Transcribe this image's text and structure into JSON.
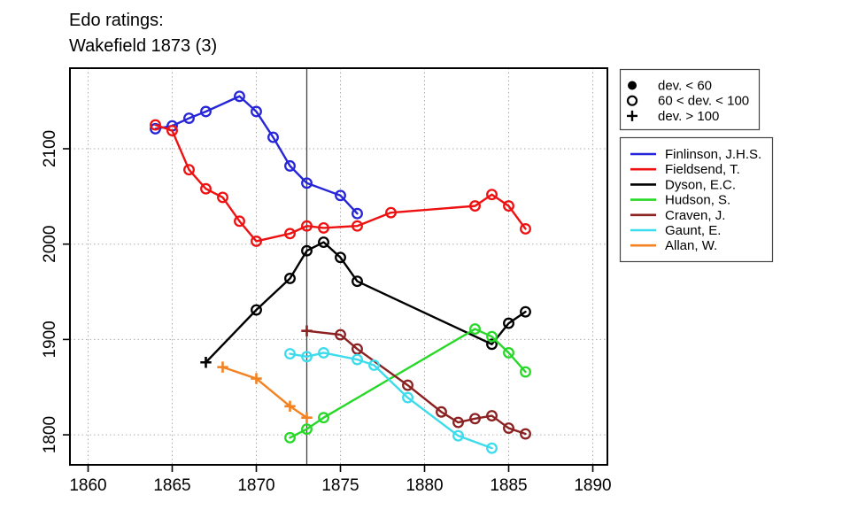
{
  "title": {
    "line1": "Edo ratings:",
    "line2": "Wakefield 1873 (3)"
  },
  "chart_data": {
    "type": "line",
    "title": "Edo ratings: Wakefield 1873 (3)",
    "xlabel": "",
    "ylabel": "",
    "x_ticks": [
      "1860",
      "1865",
      "1870",
      "1875",
      "1880",
      "1885",
      "1890"
    ],
    "y_ticks": [
      "1800",
      "1900",
      "2000",
      "2100"
    ],
    "xlim": [
      1859,
      1891
    ],
    "ylim": [
      1770,
      2185
    ],
    "grid": "dotted",
    "legend_position": "right-outside",
    "reference_line_year": 1873,
    "marker_legend": [
      {
        "symbol": "filled-circle",
        "label": "dev. < 60"
      },
      {
        "symbol": "open-circle",
        "label": "60 < dev. < 100"
      },
      {
        "symbol": "plus",
        "label": "dev. > 100"
      }
    ],
    "marker_meaning": {
      "o": "60 < dev. < 100",
      "+": "dev. > 100",
      "f": "dev. < 60"
    },
    "series": [
      {
        "name": "Finlinson, J.H.S.",
        "color": "#2626d8",
        "points": [
          [
            1864,
            2121,
            "o"
          ],
          [
            1865,
            2124,
            "o"
          ],
          [
            1866,
            2132,
            "o"
          ],
          [
            1867,
            2139,
            "o"
          ],
          [
            1869,
            2155,
            "o"
          ],
          [
            1870,
            2139,
            "o"
          ],
          [
            1871,
            2112,
            "o"
          ],
          [
            1872,
            2082,
            "o"
          ],
          [
            1873,
            2064,
            "o"
          ],
          [
            1875,
            2051,
            "o"
          ],
          [
            1876,
            2032,
            "o"
          ]
        ]
      },
      {
        "name": "Fieldsend, T.",
        "color": "#ee1111",
        "points": [
          [
            1864,
            2125,
            "o"
          ],
          [
            1865,
            2119,
            "o"
          ],
          [
            1866,
            2078,
            "o"
          ],
          [
            1867,
            2058,
            "o"
          ],
          [
            1868,
            2049,
            "o"
          ],
          [
            1869,
            2024,
            "o"
          ],
          [
            1870,
            2003,
            "o"
          ],
          [
            1872,
            2011,
            "o"
          ],
          [
            1873,
            2019,
            "o"
          ],
          [
            1874,
            2017,
            "o"
          ],
          [
            1876,
            2019,
            "o"
          ],
          [
            1878,
            2033,
            "o"
          ],
          [
            1883,
            2040,
            "o"
          ],
          [
            1884,
            2052,
            "o"
          ],
          [
            1885,
            2040,
            "o"
          ],
          [
            1886,
            2016,
            "o"
          ]
        ]
      },
      {
        "name": "Dyson, E.C.",
        "color": "#000000",
        "points": [
          [
            1867,
            1876,
            "+"
          ],
          [
            1870,
            1931,
            "o"
          ],
          [
            1872,
            1964,
            "o"
          ],
          [
            1873,
            1993,
            "o"
          ],
          [
            1874,
            2002,
            "o"
          ],
          [
            1875,
            1986,
            "o"
          ],
          [
            1876,
            1961,
            "o"
          ],
          [
            1884,
            1895,
            "o"
          ],
          [
            1885,
            1917,
            "o"
          ],
          [
            1886,
            1929,
            "o"
          ]
        ]
      },
      {
        "name": "Hudson, S.",
        "color": "#28d828",
        "points": [
          [
            1872,
            1797,
            "o"
          ],
          [
            1873,
            1806,
            "o"
          ],
          [
            1874,
            1818,
            "o"
          ],
          [
            1883,
            1911,
            "o"
          ],
          [
            1884,
            1903,
            "o"
          ],
          [
            1885,
            1886,
            "o"
          ],
          [
            1886,
            1866,
            "o"
          ]
        ]
      },
      {
        "name": "Craven, J.",
        "color": "#8b2121",
        "points": [
          [
            1873,
            1909,
            "+"
          ],
          [
            1875,
            1905,
            "o"
          ],
          [
            1876,
            1890,
            "o"
          ],
          [
            1879,
            1852,
            "o"
          ],
          [
            1881,
            1824,
            "o"
          ],
          [
            1882,
            1813,
            "o"
          ],
          [
            1883,
            1817,
            "o"
          ],
          [
            1884,
            1820,
            "o"
          ],
          [
            1885,
            1807,
            "o"
          ],
          [
            1886,
            1801,
            "o"
          ]
        ]
      },
      {
        "name": "Gaunt, E.",
        "color": "#3cdcec",
        "points": [
          [
            1872,
            1885,
            "o"
          ],
          [
            1873,
            1882,
            "o"
          ],
          [
            1874,
            1886,
            "o"
          ],
          [
            1876,
            1879,
            "o"
          ],
          [
            1877,
            1873,
            "o"
          ],
          [
            1879,
            1839,
            "o"
          ],
          [
            1882,
            1799,
            "o"
          ],
          [
            1884,
            1786,
            "o"
          ]
        ]
      },
      {
        "name": "Allan, W.",
        "color": "#f28222",
        "points": [
          [
            1868,
            1871,
            "+"
          ],
          [
            1870,
            1859,
            "+"
          ],
          [
            1872,
            1830,
            "+"
          ],
          [
            1873,
            1818,
            "+"
          ]
        ]
      }
    ]
  },
  "colors": {
    "frame": "#000000",
    "gridline": "#adadad",
    "reference_line": "#444444",
    "legend_border": "#444444"
  }
}
